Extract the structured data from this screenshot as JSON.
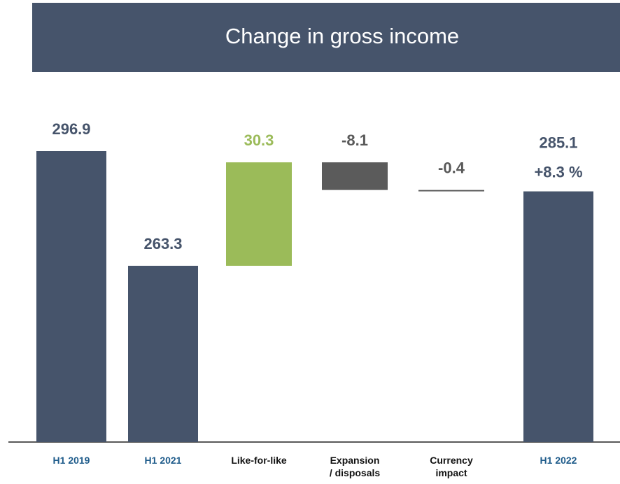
{
  "chart_data": {
    "type": "waterfall",
    "title": "Change in gross income",
    "categories": [
      "H1 2019",
      "H1 2021",
      "Like-for-like",
      "Expansion\n/ disposals",
      "Currency\nimpact",
      "H1 2022"
    ],
    "values": [
      296.9,
      263.3,
      30.3,
      -8.1,
      -0.4,
      285.1
    ],
    "is_total": [
      true,
      true,
      false,
      false,
      false,
      true
    ],
    "annotation": "+8.3 %",
    "colors": {
      "total": "#46546b",
      "increase": "#9bbb59",
      "decrease": "#5b5b5b"
    },
    "label_colors": {
      "total": "#46546b",
      "increase": "#9bbb59",
      "decrease": "#595959"
    },
    "category_colors": {
      "total": "#1f5c8b",
      "other": "#111111"
    }
  }
}
